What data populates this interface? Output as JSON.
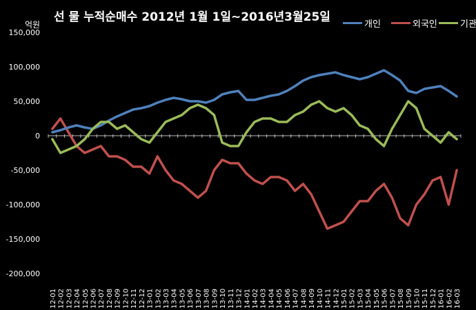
{
  "chart_data": {
    "type": "line",
    "title": "선 물 누적순매수 2012년 1월 1일~2016년3월25일",
    "ylabel": "억원",
    "ylim": [
      -200000,
      150000
    ],
    "yticks": [
      150000,
      100000,
      50000,
      0,
      -50000,
      -100000,
      -150000,
      -200000
    ],
    "ytick_labels": [
      "150,000",
      "100,000",
      "50,000",
      "0",
      "-50,000",
      "-100,000",
      "-150,000",
      "-200,000"
    ],
    "grid": false,
    "legend_position": "top-right",
    "background": "#000000",
    "categories": [
      "12-01",
      "12-02",
      "12-03",
      "12-04",
      "12-05",
      "12-06",
      "12-07",
      "12-08",
      "12-09",
      "12-10",
      "12-11",
      "12-12",
      "13-01",
      "13-02",
      "13-03",
      "13-04",
      "13-05",
      "13-06",
      "13-07",
      "13-08",
      "13-09",
      "13-10",
      "13-11",
      "13-12",
      "14-01",
      "14-02",
      "14-03",
      "14-04",
      "14-05",
      "14-06",
      "14-07",
      "14-08",
      "14-09",
      "14-10",
      "14-11",
      "14-12",
      "15-01",
      "15-02",
      "15-03",
      "15-04",
      "15-05",
      "15-06",
      "15-07",
      "15-08",
      "15-09",
      "15-10",
      "15-11",
      "15-12",
      "16-01",
      "16-02",
      "16-03"
    ],
    "series": [
      {
        "name": "개인",
        "color": "#4f81bd",
        "values": [
          5000,
          8000,
          12000,
          15000,
          12000,
          10000,
          15000,
          22000,
          28000,
          33000,
          38000,
          40000,
          43000,
          48000,
          52000,
          55000,
          53000,
          50000,
          50000,
          48000,
          52000,
          60000,
          63000,
          65000,
          52000,
          52000,
          55000,
          58000,
          60000,
          65000,
          72000,
          80000,
          85000,
          88000,
          90000,
          92000,
          88000,
          85000,
          82000,
          85000,
          90000,
          95000,
          88000,
          80000,
          65000,
          62000,
          68000,
          70000,
          72000,
          65000,
          57000
        ]
      },
      {
        "name": "외국인",
        "color": "#c0504d",
        "values": [
          10000,
          25000,
          5000,
          -15000,
          -25000,
          -20000,
          -15000,
          -30000,
          -30000,
          -35000,
          -45000,
          -45000,
          -55000,
          -30000,
          -50000,
          -65000,
          -70000,
          -80000,
          -90000,
          -80000,
          -50000,
          -35000,
          -40000,
          -40000,
          -55000,
          -65000,
          -70000,
          -60000,
          -60000,
          -65000,
          -80000,
          -70000,
          -85000,
          -110000,
          -135000,
          -130000,
          -125000,
          -110000,
          -95000,
          -95000,
          -80000,
          -70000,
          -90000,
          -120000,
          -130000,
          -100000,
          -85000,
          -65000,
          -60000,
          -100000,
          -50000
        ]
      },
      {
        "name": "기관",
        "color": "#9bbb59",
        "values": [
          -5000,
          -25000,
          -20000,
          -15000,
          -5000,
          10000,
          20000,
          20000,
          10000,
          15000,
          5000,
          -5000,
          -10000,
          5000,
          20000,
          25000,
          30000,
          40000,
          45000,
          40000,
          30000,
          -10000,
          -15000,
          -15000,
          5000,
          20000,
          25000,
          25000,
          20000,
          20000,
          30000,
          35000,
          45000,
          50000,
          40000,
          35000,
          40000,
          30000,
          15000,
          10000,
          -5000,
          -15000,
          10000,
          30000,
          50000,
          40000,
          10000,
          0,
          -10000,
          5000,
          -5000
        ]
      }
    ]
  }
}
